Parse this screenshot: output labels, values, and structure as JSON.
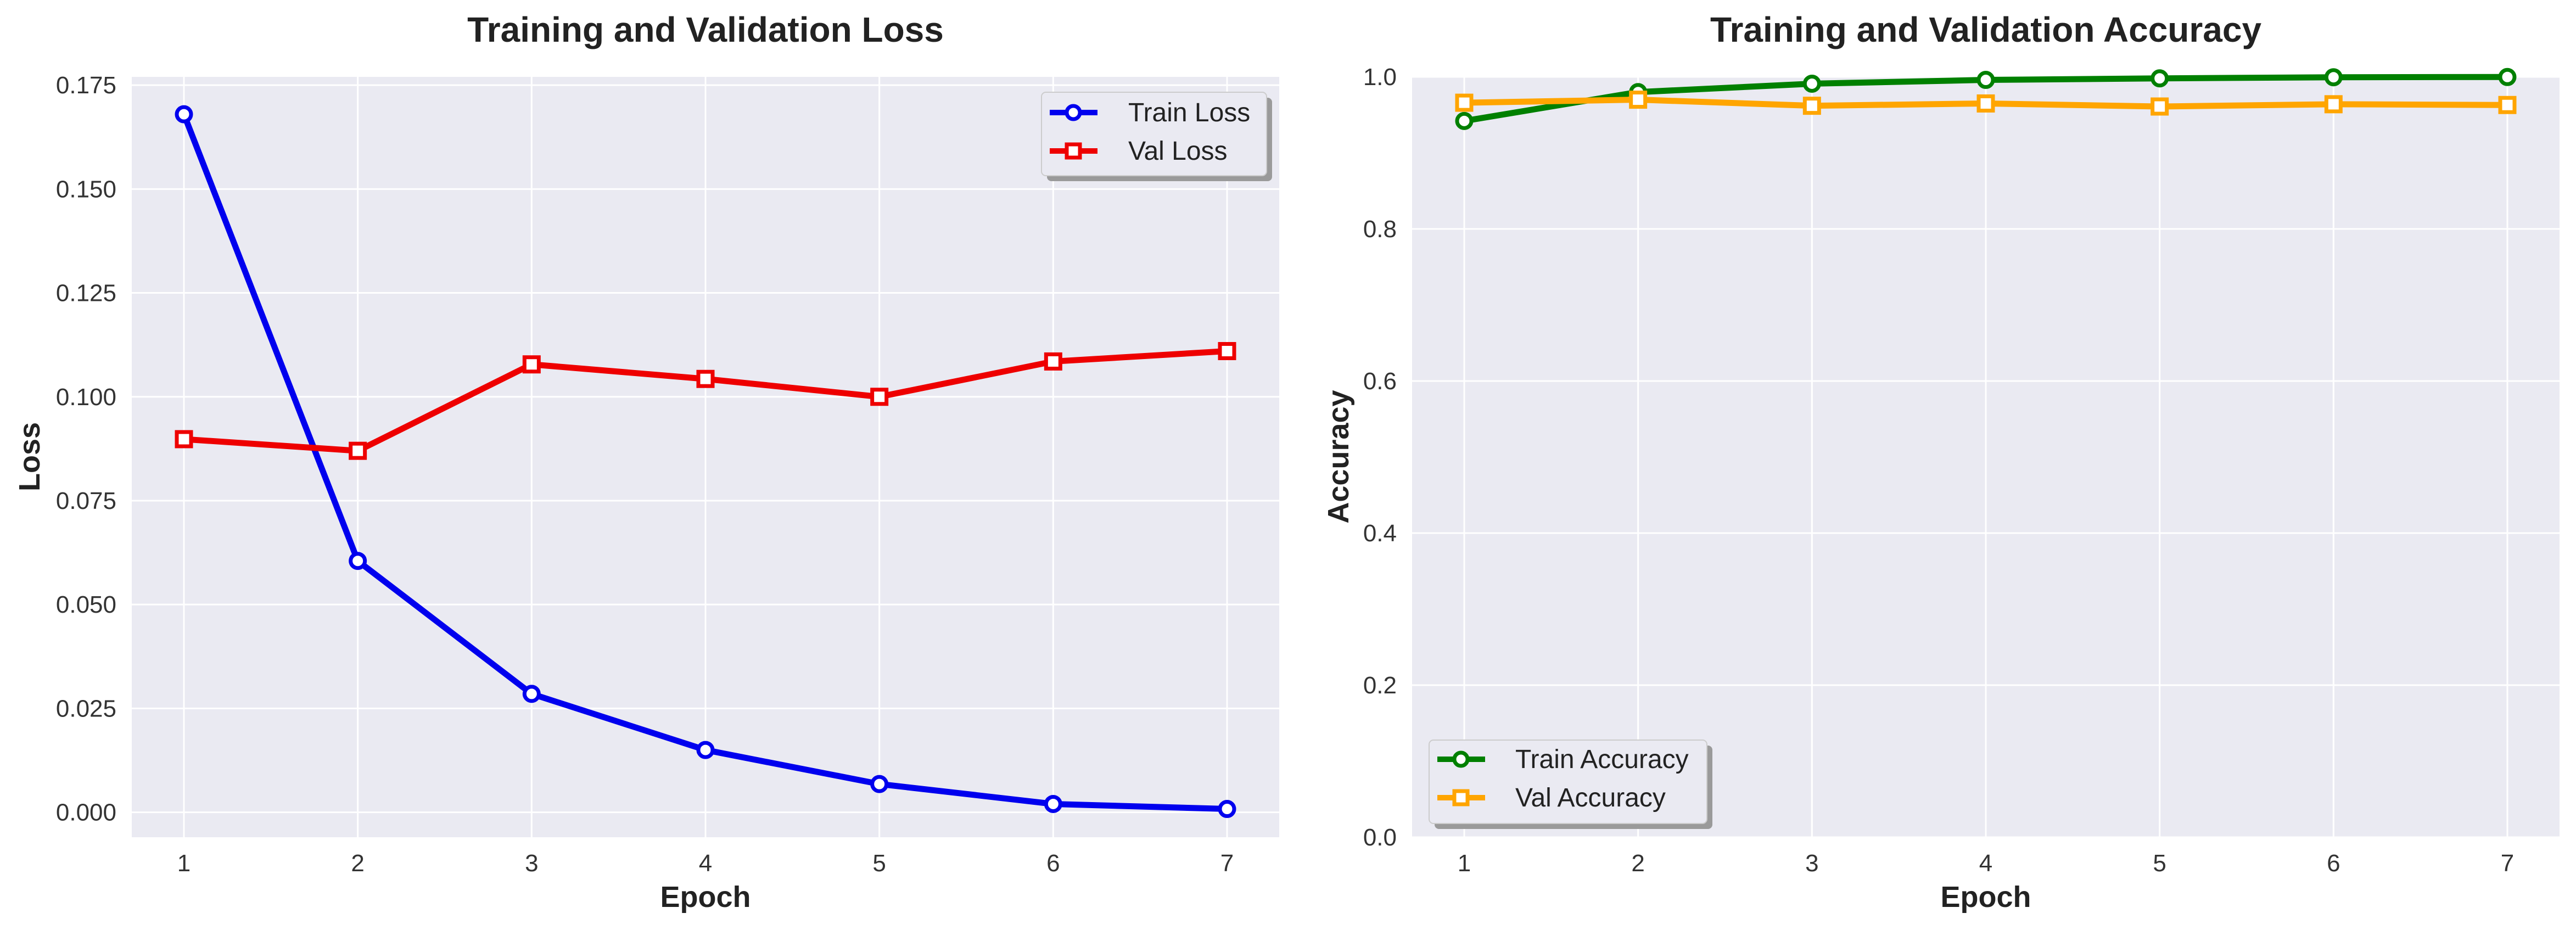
{
  "chart_data": [
    {
      "type": "line",
      "title": "Training and Validation Loss",
      "xlabel": "Epoch",
      "ylabel": "Loss",
      "x": [
        1,
        2,
        3,
        4,
        5,
        6,
        7
      ],
      "xlim": [
        0.7,
        7.3
      ],
      "ylim": [
        -0.006,
        0.177
      ],
      "xticks": [
        "1",
        "2",
        "3",
        "4",
        "5",
        "6",
        "7"
      ],
      "yticks": [
        "0.000",
        "0.025",
        "0.050",
        "0.075",
        "0.100",
        "0.125",
        "0.150",
        "0.175"
      ],
      "grid": true,
      "legend_position": "upper right",
      "series": [
        {
          "name": "Train Loss",
          "color": "#0000ee",
          "marker": "circle",
          "values": [
            0.168,
            0.0605,
            0.0285,
            0.015,
            0.0068,
            0.002,
            0.0008
          ]
        },
        {
          "name": "Val Loss",
          "color": "#ee0000",
          "marker": "square",
          "values": [
            0.0898,
            0.087,
            0.1078,
            0.1043,
            0.1,
            0.1085,
            0.111
          ]
        }
      ]
    },
    {
      "type": "line",
      "title": "Training and Validation Accuracy",
      "xlabel": "Epoch",
      "ylabel": "Accuracy",
      "x": [
        1,
        2,
        3,
        4,
        5,
        6,
        7
      ],
      "xlim": [
        0.7,
        7.3
      ],
      "ylim": [
        0,
        1.0
      ],
      "xticks": [
        "1",
        "2",
        "3",
        "4",
        "5",
        "6",
        "7"
      ],
      "yticks": [
        "0.0",
        "0.2",
        "0.4",
        "0.6",
        "0.8",
        "1.0"
      ],
      "grid": true,
      "legend_position": "lower left",
      "series": [
        {
          "name": "Train Accuracy",
          "color": "#008000",
          "marker": "circle",
          "values": [
            0.942,
            0.98,
            0.991,
            0.996,
            0.998,
            0.9995,
            0.9998
          ]
        },
        {
          "name": "Val Accuracy",
          "color": "#ffa500",
          "marker": "square",
          "values": [
            0.966,
            0.97,
            0.962,
            0.965,
            0.961,
            0.964,
            0.963
          ]
        }
      ]
    }
  ]
}
